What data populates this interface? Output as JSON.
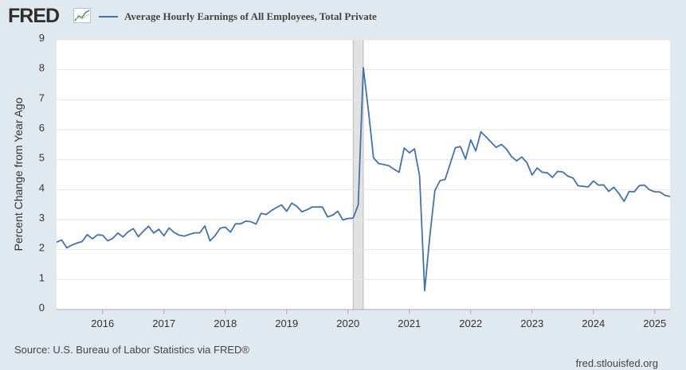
{
  "header": {
    "logo_text": "FRED",
    "logo_icon": "fred-graph-icon"
  },
  "footer": {
    "source": "Source: U.S. Bureau of Labor Statistics via FRED®",
    "site": "fred.stlouisfed.org"
  },
  "colors": {
    "background": "#e1e9f0",
    "plot_background": "#ffffff",
    "series": "#4572a7",
    "grid": "#e6e6e6",
    "recession": "#e1e1e1"
  },
  "chart_data": {
    "type": "line",
    "title": "",
    "xlabel": "",
    "ylabel": "Percent Change from Year Ago",
    "ylim": [
      0,
      9
    ],
    "xlim": [
      "2015-04",
      "2025-04"
    ],
    "yticks": [
      0,
      1,
      2,
      3,
      4,
      5,
      6,
      7,
      8,
      9
    ],
    "xticks": [
      "2016",
      "2017",
      "2018",
      "2019",
      "2020",
      "2021",
      "2022",
      "2023",
      "2024",
      "2025"
    ],
    "grid": true,
    "legend_position": "top",
    "recessions": [
      {
        "start": "2020-02",
        "end": "2020-04"
      }
    ],
    "series": [
      {
        "name": "Average Hourly Earnings of All Employees, Total Private",
        "points": [
          [
            "2015-04",
            2.25
          ],
          [
            "2015-05",
            2.32
          ],
          [
            "2015-06",
            2.06
          ],
          [
            "2015-07",
            2.15
          ],
          [
            "2015-08",
            2.22
          ],
          [
            "2015-09",
            2.27
          ],
          [
            "2015-10",
            2.5
          ],
          [
            "2015-11",
            2.36
          ],
          [
            "2015-12",
            2.49
          ],
          [
            "2016-01",
            2.48
          ],
          [
            "2016-02",
            2.29
          ],
          [
            "2016-03",
            2.38
          ],
          [
            "2016-04",
            2.55
          ],
          [
            "2016-05",
            2.42
          ],
          [
            "2016-06",
            2.59
          ],
          [
            "2016-07",
            2.7
          ],
          [
            "2016-08",
            2.43
          ],
          [
            "2016-09",
            2.62
          ],
          [
            "2016-10",
            2.78
          ],
          [
            "2016-11",
            2.55
          ],
          [
            "2016-12",
            2.68
          ],
          [
            "2017-01",
            2.46
          ],
          [
            "2017-02",
            2.72
          ],
          [
            "2017-03",
            2.57
          ],
          [
            "2017-04",
            2.48
          ],
          [
            "2017-05",
            2.45
          ],
          [
            "2017-06",
            2.51
          ],
          [
            "2017-07",
            2.56
          ],
          [
            "2017-08",
            2.56
          ],
          [
            "2017-09",
            2.79
          ],
          [
            "2017-10",
            2.29
          ],
          [
            "2017-11",
            2.46
          ],
          [
            "2017-12",
            2.71
          ],
          [
            "2018-01",
            2.75
          ],
          [
            "2018-02",
            2.58
          ],
          [
            "2018-03",
            2.86
          ],
          [
            "2018-04",
            2.86
          ],
          [
            "2018-05",
            2.95
          ],
          [
            "2018-06",
            2.93
          ],
          [
            "2018-07",
            2.85
          ],
          [
            "2018-08",
            3.21
          ],
          [
            "2018-09",
            3.17
          ],
          [
            "2018-10",
            3.3
          ],
          [
            "2018-11",
            3.4
          ],
          [
            "2018-12",
            3.49
          ],
          [
            "2019-01",
            3.28
          ],
          [
            "2019-02",
            3.55
          ],
          [
            "2019-03",
            3.44
          ],
          [
            "2019-04",
            3.26
          ],
          [
            "2019-05",
            3.33
          ],
          [
            "2019-06",
            3.42
          ],
          [
            "2019-07",
            3.42
          ],
          [
            "2019-08",
            3.42
          ],
          [
            "2019-09",
            3.09
          ],
          [
            "2019-10",
            3.15
          ],
          [
            "2019-11",
            3.28
          ],
          [
            "2019-12",
            2.99
          ],
          [
            "2020-01",
            3.04
          ],
          [
            "2020-02",
            3.05
          ],
          [
            "2020-03",
            3.49
          ],
          [
            "2020-04",
            8.07
          ],
          [
            "2020-05",
            6.64
          ],
          [
            "2020-06",
            5.06
          ],
          [
            "2020-07",
            4.87
          ],
          [
            "2020-08",
            4.84
          ],
          [
            "2020-09",
            4.8
          ],
          [
            "2020-10",
            4.68
          ],
          [
            "2020-11",
            4.58
          ],
          [
            "2020-12",
            5.39
          ],
          [
            "2021-01",
            5.23
          ],
          [
            "2021-02",
            5.36
          ],
          [
            "2021-03",
            4.46
          ],
          [
            "2021-04",
            0.63
          ],
          [
            "2021-05",
            2.42
          ],
          [
            "2021-06",
            3.97
          ],
          [
            "2021-07",
            4.3
          ],
          [
            "2021-08",
            4.34
          ],
          [
            "2021-09",
            4.87
          ],
          [
            "2021-10",
            5.4
          ],
          [
            "2021-11",
            5.44
          ],
          [
            "2021-12",
            5.02
          ],
          [
            "2022-01",
            5.66
          ],
          [
            "2022-02",
            5.29
          ],
          [
            "2022-03",
            5.93
          ],
          [
            "2022-04",
            5.76
          ],
          [
            "2022-05",
            5.58
          ],
          [
            "2022-06",
            5.41
          ],
          [
            "2022-07",
            5.51
          ],
          [
            "2022-08",
            5.35
          ],
          [
            "2022-09",
            5.1
          ],
          [
            "2022-10",
            4.96
          ],
          [
            "2022-11",
            5.09
          ],
          [
            "2022-12",
            4.9
          ],
          [
            "2023-01",
            4.49
          ],
          [
            "2023-02",
            4.72
          ],
          [
            "2023-03",
            4.58
          ],
          [
            "2023-04",
            4.56
          ],
          [
            "2023-05",
            4.41
          ],
          [
            "2023-06",
            4.61
          ],
          [
            "2023-07",
            4.59
          ],
          [
            "2023-08",
            4.45
          ],
          [
            "2023-09",
            4.39
          ],
          [
            "2023-10",
            4.13
          ],
          [
            "2023-11",
            4.11
          ],
          [
            "2023-12",
            4.09
          ],
          [
            "2024-01",
            4.29
          ],
          [
            "2024-02",
            4.15
          ],
          [
            "2024-03",
            4.16
          ],
          [
            "2024-04",
            3.94
          ],
          [
            "2024-05",
            4.08
          ],
          [
            "2024-06",
            3.87
          ],
          [
            "2024-07",
            3.61
          ],
          [
            "2024-08",
            3.94
          ],
          [
            "2024-09",
            3.93
          ],
          [
            "2024-10",
            4.14
          ],
          [
            "2024-11",
            4.15
          ],
          [
            "2024-12",
            3.99
          ],
          [
            "2025-01",
            3.93
          ],
          [
            "2025-02",
            3.92
          ],
          [
            "2025-03",
            3.81
          ],
          [
            "2025-04",
            3.77
          ]
        ]
      }
    ]
  }
}
